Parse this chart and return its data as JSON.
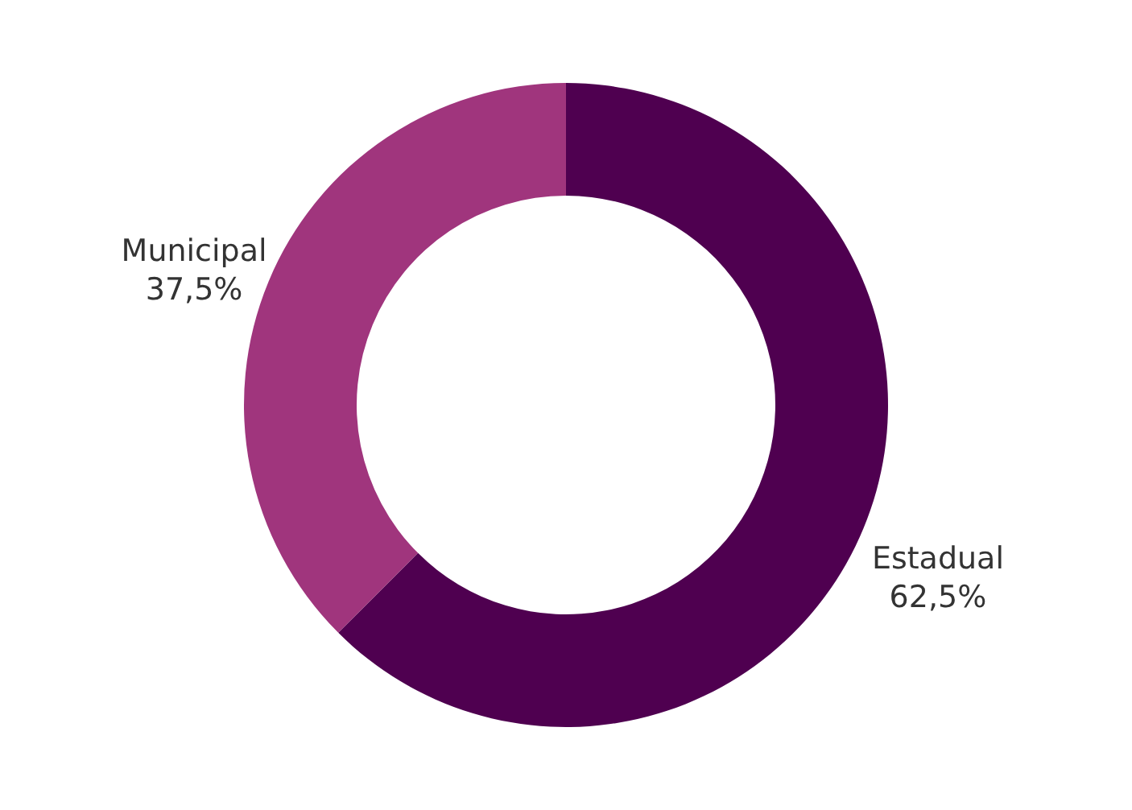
{
  "chart_data": {
    "type": "donut",
    "categories": [
      "Estadual",
      "Municipal"
    ],
    "values": [
      62.5,
      37.5
    ],
    "value_labels": [
      "62,5%",
      "37,5%"
    ],
    "colors": [
      "#4f0050",
      "#a0357d"
    ]
  }
}
